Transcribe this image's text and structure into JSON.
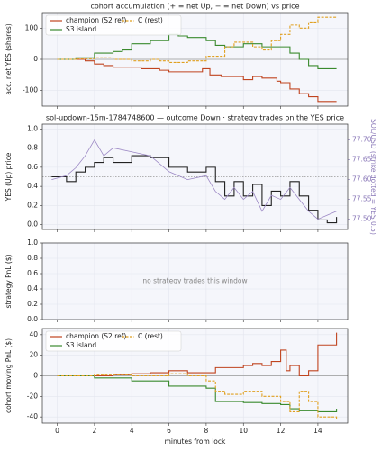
{
  "chart_data": [
    {
      "type": "line",
      "drawstyle": "steps-post",
      "title": "cohort accumulation (+ = net Up, − = net Down) vs price",
      "y_label": "acc. net YES (shares)",
      "xlim": [
        -0.8,
        15.6
      ],
      "xticks": [
        0,
        2,
        4,
        6,
        8,
        10,
        12,
        14
      ],
      "show_xtick_labels": false,
      "ylim": [
        -150,
        150
      ],
      "yticks": [
        -100,
        0,
        100
      ],
      "grid": true,
      "zero_line": true,
      "legend": "upper left",
      "series": [
        {
          "name": "champion (S2 ref)",
          "color": "#c0441f",
          "dash": "solid",
          "x": [
            0,
            1,
            1.5,
            2,
            2.5,
            3,
            4.5,
            5.5,
            6,
            7.8,
            8.2,
            8.8,
            10,
            10.5,
            11,
            11.8,
            12,
            12.5,
            13,
            13.5,
            14,
            15
          ],
          "values": [
            0,
            0,
            -5,
            -15,
            -20,
            -25,
            -30,
            -35,
            -40,
            -30,
            -50,
            -55,
            -65,
            -55,
            -60,
            -70,
            -75,
            -95,
            -110,
            -120,
            -135,
            -135
          ]
        },
        {
          "name": "S3 island",
          "color": "#3a8a2e",
          "dash": "solid",
          "x": [
            0,
            1,
            2,
            3,
            3.5,
            4,
            5,
            6,
            6.5,
            7,
            8,
            8.5,
            9,
            10,
            11,
            12.5,
            13,
            13.5,
            14,
            15
          ],
          "values": [
            0,
            5,
            20,
            25,
            30,
            50,
            60,
            80,
            75,
            70,
            60,
            45,
            40,
            50,
            40,
            20,
            0,
            -20,
            -30,
            -30
          ]
        },
        {
          "name": "C (rest)",
          "color": "#e0a020",
          "dash": "dashed",
          "x": [
            0,
            1,
            2,
            3,
            4,
            5,
            5.5,
            6,
            7,
            8,
            9,
            9.5,
            10.5,
            11,
            11.5,
            12,
            12.5,
            13,
            13.5,
            14,
            15
          ],
          "values": [
            0,
            2,
            5,
            0,
            -5,
            0,
            -5,
            -10,
            -5,
            10,
            40,
            55,
            40,
            30,
            60,
            80,
            110,
            100,
            120,
            135,
            135
          ]
        }
      ]
    },
    {
      "type": "line",
      "title": "sol-updown-15m-1784748600 — outcome Down · strategy trades on the YES price",
      "y_label": "YES (Up) price",
      "y2_label": "SOL/USD (strike dotted = YES 0.5)",
      "xlim": [
        -0.8,
        15.6
      ],
      "xticks": [
        0,
        2,
        4,
        6,
        8,
        10,
        12,
        14
      ],
      "show_xtick_labels": false,
      "ylim": [
        -0.05,
        1.05
      ],
      "yticks": [
        {
          "value": 0,
          "label": "0.0"
        },
        0.2,
        0.4,
        0.6,
        0.8,
        {
          "value": 1,
          "label": "1.0"
        }
      ],
      "y2lim": [
        77.474,
        77.74
      ],
      "y2ticks": [
        {
          "value": 77.5,
          "label": "77.50"
        },
        77.55,
        {
          "value": 77.6,
          "label": "77.60"
        },
        77.65,
        {
          "value": 77.7,
          "label": "77.70"
        }
      ],
      "hline": 0.5,
      "grid": true,
      "series": [
        {
          "name": "YES price",
          "color": "#222222",
          "drawstyle": "steps-post",
          "x": [
            -0.3,
            0.5,
            1,
            1.5,
            2,
            2.5,
            3,
            4,
            5,
            6,
            7,
            8,
            8.5,
            9,
            9.5,
            10,
            10.5,
            11,
            11.5,
            12,
            12.5,
            13,
            13.5,
            14,
            14.5,
            15
          ],
          "values": [
            0.5,
            0.45,
            0.55,
            0.6,
            0.65,
            0.7,
            0.65,
            0.72,
            0.7,
            0.6,
            0.55,
            0.6,
            0.45,
            0.3,
            0.45,
            0.3,
            0.42,
            0.2,
            0.35,
            0.3,
            0.45,
            0.3,
            0.15,
            0.05,
            0.02,
            0.08
          ]
        },
        {
          "name": "SOL/USD",
          "color": "#9b87c4",
          "axis": "y2",
          "drawstyle": "linear",
          "x": [
            -0.3,
            0.5,
            1,
            1.5,
            2,
            2.5,
            3,
            4,
            5,
            6,
            7,
            8,
            8.5,
            9,
            9.5,
            10,
            10.5,
            11,
            11.5,
            12,
            12.5,
            13,
            13.5,
            14,
            14.5,
            15
          ],
          "values": [
            77.6,
            77.61,
            77.63,
            77.66,
            77.7,
            77.66,
            77.68,
            77.67,
            77.66,
            77.62,
            77.6,
            77.61,
            77.57,
            77.55,
            77.58,
            77.55,
            77.57,
            77.52,
            77.56,
            77.55,
            77.58,
            77.55,
            77.52,
            77.5,
            77.51,
            77.52
          ]
        }
      ]
    },
    {
      "type": "empty",
      "y_label": "strategy PnL ($)",
      "annotation": "no strategy trades this window",
      "xlim": [
        -0.8,
        15.6
      ],
      "xticks": [
        0,
        2,
        4,
        6,
        8,
        10,
        12,
        14
      ],
      "show_xtick_labels": false,
      "ylim": [
        0,
        1
      ],
      "yticks": [
        {
          "value": 0,
          "label": "0.0"
        },
        0.2,
        0.4,
        0.6,
        0.8,
        {
          "value": 1,
          "label": "1.0"
        }
      ],
      "grid": true,
      "series": []
    },
    {
      "type": "line",
      "drawstyle": "steps-post",
      "y_label": "cohort moving PnL ($)",
      "x_label": "minutes from lock",
      "xlim": [
        -0.8,
        15.6
      ],
      "xticks": [
        0,
        2,
        4,
        6,
        8,
        10,
        12,
        14
      ],
      "show_xtick_labels": true,
      "ylim": [
        -46,
        46
      ],
      "yticks": [
        -40,
        -20,
        0,
        20,
        40
      ],
      "grid": true,
      "zero_line": true,
      "legend": "upper left",
      "series": [
        {
          "name": "champion (S2 ref)",
          "color": "#c0441f",
          "dash": "solid",
          "x": [
            0,
            2,
            3,
            4,
            5,
            6,
            7,
            8.5,
            10,
            10.5,
            11,
            11.5,
            12,
            12.3,
            12.5,
            13,
            13.5,
            14,
            14.8,
            15
          ],
          "values": [
            0,
            0,
            1,
            2,
            3,
            5,
            3,
            8,
            10,
            12,
            10,
            14,
            25,
            5,
            10,
            0,
            5,
            30,
            30,
            42
          ]
        },
        {
          "name": "S3 island",
          "color": "#3a8a2e",
          "dash": "solid",
          "x": [
            0,
            2,
            4,
            6,
            8,
            8.5,
            10,
            11,
            12,
            12.5,
            13,
            14,
            15
          ],
          "values": [
            0,
            -2,
            -5,
            -10,
            -12,
            -25,
            -26,
            -27,
            -28,
            -32,
            -34,
            -35,
            -32
          ]
        },
        {
          "name": "C (rest)",
          "color": "#e0a020",
          "dash": "dashed",
          "x": [
            0,
            2,
            4,
            6,
            7,
            8,
            8.5,
            9,
            10,
            11,
            12,
            12.5,
            13,
            13.5,
            14,
            15
          ],
          "values": [
            0,
            1,
            0,
            2,
            0,
            -5,
            -15,
            -18,
            -15,
            -20,
            -25,
            -35,
            -15,
            -25,
            -40,
            -42
          ]
        }
      ]
    }
  ]
}
